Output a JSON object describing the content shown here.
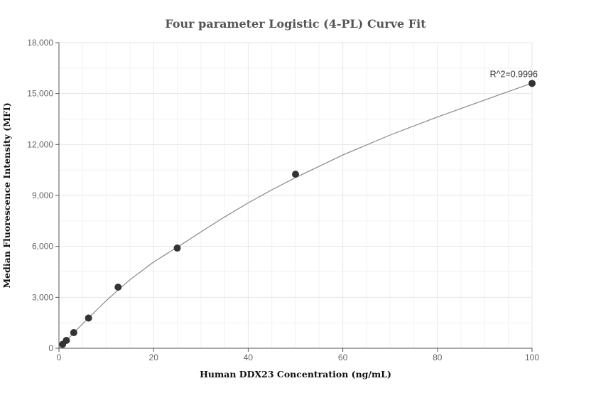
{
  "chart_data": {
    "type": "scatter",
    "title": "Four parameter Logistic (4-PL) Curve Fit",
    "xlabel": "Human DDX23 Concentration (ng/mL)",
    "ylabel": "Median Fluorescence Intensity (MFI)",
    "xlim": [
      0,
      100
    ],
    "ylim": [
      0,
      18000
    ],
    "x_ticks": [
      0,
      20,
      40,
      60,
      80,
      100
    ],
    "x_tick_labels": [
      "0",
      "20",
      "40",
      "60",
      "80",
      "100"
    ],
    "y_ticks": [
      0,
      3000,
      6000,
      9000,
      12000,
      15000,
      18000
    ],
    "y_tick_labels": [
      "0",
      "3,000",
      "6,000",
      "9,000",
      "12,000",
      "15,000",
      "18,000"
    ],
    "grid": true,
    "series": [
      {
        "points": [
          {
            "x": 0.78,
            "y": 230
          },
          {
            "x": 1.56,
            "y": 460
          },
          {
            "x": 3.13,
            "y": 920
          },
          {
            "x": 6.25,
            "y": 1780
          },
          {
            "x": 12.5,
            "y": 3600
          },
          {
            "x": 25,
            "y": 5900
          },
          {
            "x": 50,
            "y": 10250
          },
          {
            "x": 100,
            "y": 15600
          }
        ]
      }
    ],
    "fit_curve": {
      "points": [
        {
          "x": 0,
          "y": 0
        },
        {
          "x": 1,
          "y": 290
        },
        {
          "x": 2,
          "y": 580
        },
        {
          "x": 4,
          "y": 1160
        },
        {
          "x": 6,
          "y": 1720
        },
        {
          "x": 8,
          "y": 2260
        },
        {
          "x": 10,
          "y": 2800
        },
        {
          "x": 12.5,
          "y": 3430
        },
        {
          "x": 15,
          "y": 4030
        },
        {
          "x": 20,
          "y": 5080
        },
        {
          "x": 25,
          "y": 5950
        },
        {
          "x": 30,
          "y": 6850
        },
        {
          "x": 35,
          "y": 7730
        },
        {
          "x": 40,
          "y": 8560
        },
        {
          "x": 45,
          "y": 9330
        },
        {
          "x": 50,
          "y": 10050
        },
        {
          "x": 60,
          "y": 11380
        },
        {
          "x": 70,
          "y": 12560
        },
        {
          "x": 80,
          "y": 13620
        },
        {
          "x": 90,
          "y": 14620
        },
        {
          "x": 100,
          "y": 15620
        }
      ]
    },
    "annotation": "R^2=0.9996"
  }
}
